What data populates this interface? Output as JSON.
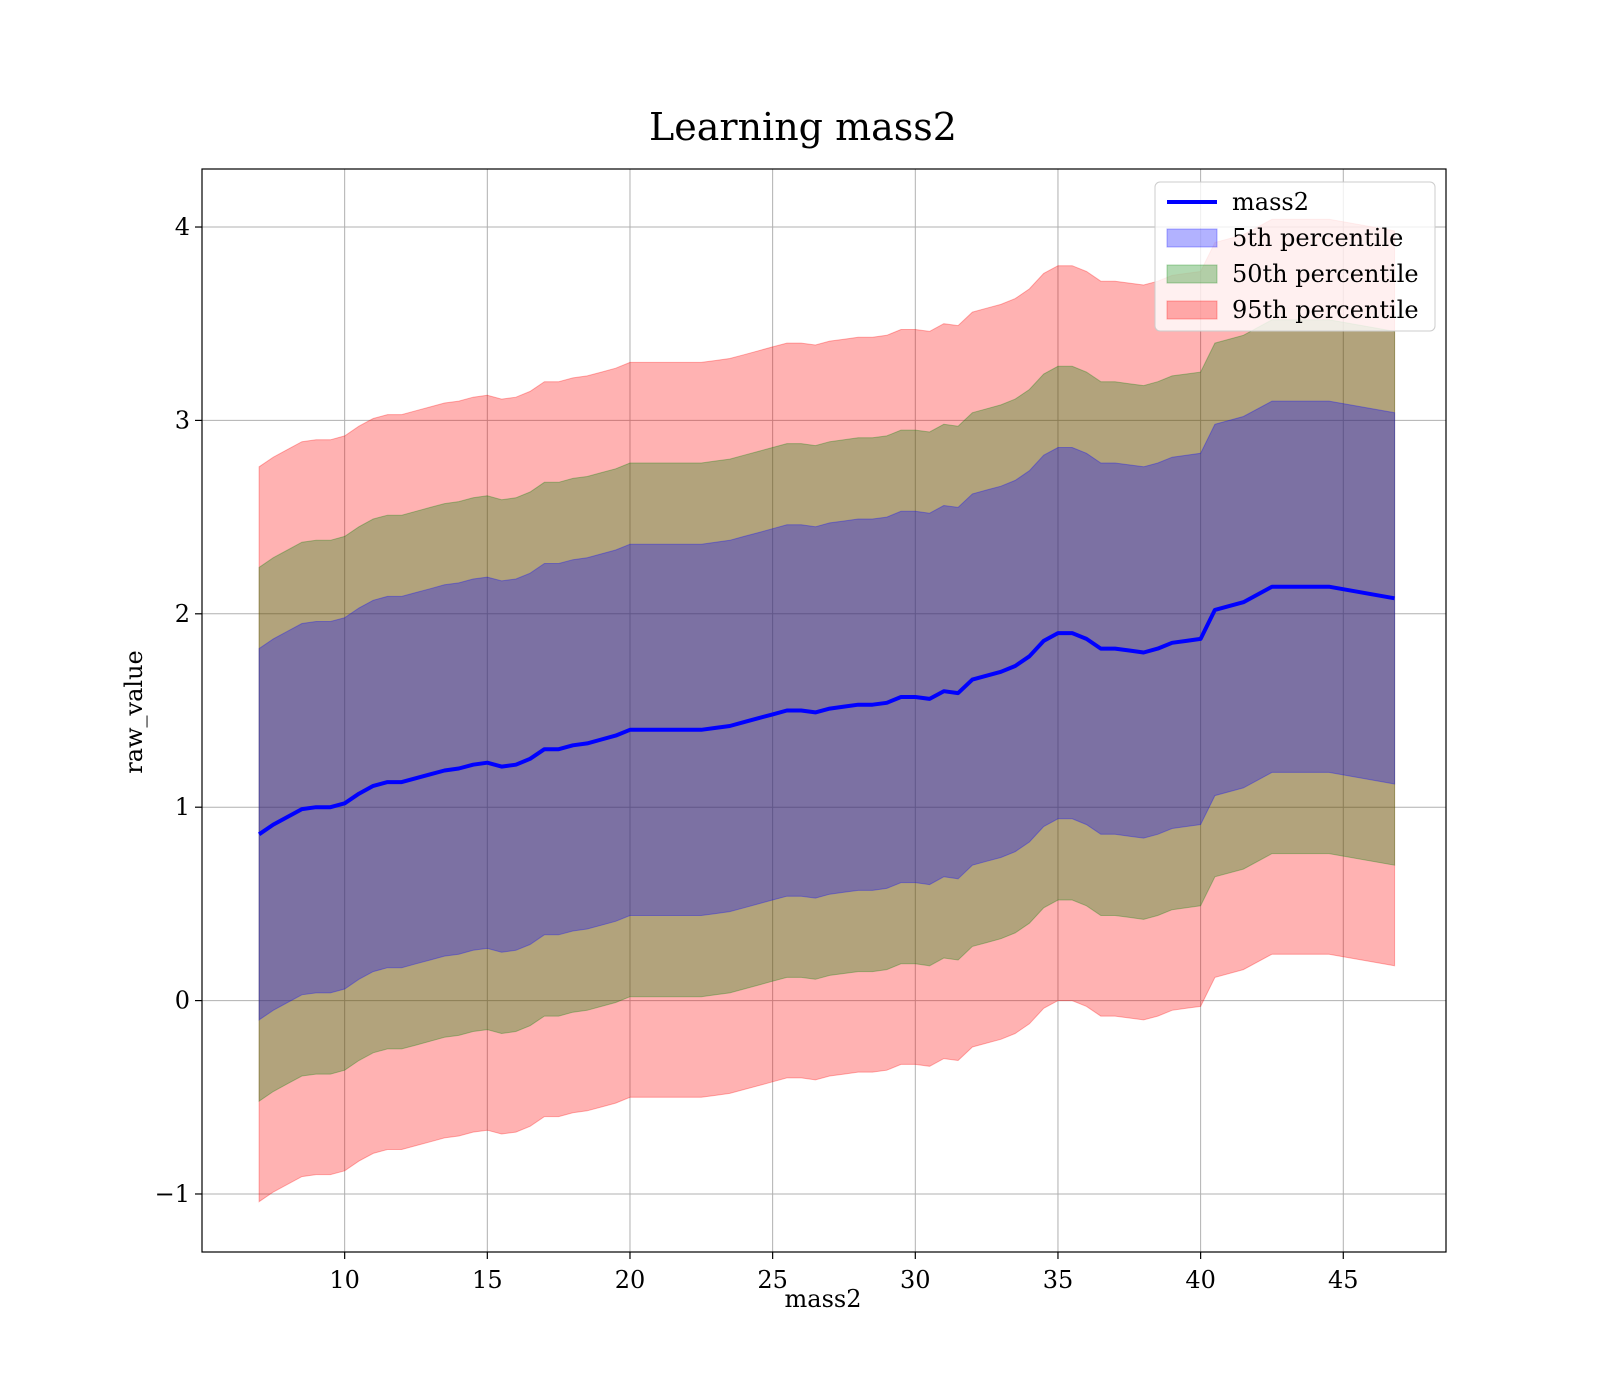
{
  "chart_data": {
    "type": "line",
    "title": "Learning mass2",
    "xlabel": "mass2",
    "ylabel": "raw_value",
    "xlim": [
      5.0,
      48.6
    ],
    "ylim": [
      -1.3,
      4.3
    ],
    "xticks": [
      10,
      15,
      20,
      25,
      30,
      35,
      40,
      45
    ],
    "xtick_labels": [
      "10",
      "15",
      "20",
      "25",
      "30",
      "35",
      "40",
      "45"
    ],
    "yticks": [
      -1,
      0,
      1,
      2,
      3,
      4
    ],
    "ytick_labels": [
      "−1",
      "0",
      "1",
      "2",
      "3",
      "4"
    ],
    "grid": true,
    "legend_position": "upper right",
    "x": [
      7.0,
      7.5,
      8.0,
      8.5,
      9.0,
      9.5,
      10.0,
      10.5,
      11.0,
      11.5,
      12.0,
      12.5,
      13.0,
      13.5,
      14.0,
      14.5,
      15.0,
      15.5,
      16.0,
      16.5,
      17.0,
      17.5,
      18.0,
      18.5,
      19.0,
      19.5,
      20.0,
      20.5,
      21.0,
      21.5,
      22.0,
      22.5,
      23.0,
      23.5,
      24.0,
      24.5,
      25.0,
      25.5,
      26.0,
      26.5,
      27.0,
      27.5,
      28.0,
      28.5,
      29.0,
      29.5,
      30.0,
      30.5,
      31.0,
      31.5,
      32.0,
      32.5,
      33.0,
      33.5,
      34.0,
      34.5,
      35.0,
      35.5,
      36.0,
      36.5,
      37.0,
      37.5,
      38.0,
      38.5,
      39.0,
      39.5,
      40.0,
      40.5,
      41.5,
      42.5,
      44.5,
      46.8
    ],
    "series": [
      {
        "name": "mass2",
        "type": "line",
        "color": "#0000ff",
        "values": [
          0.86,
          0.91,
          0.95,
          0.99,
          1.0,
          1.0,
          1.02,
          1.07,
          1.11,
          1.13,
          1.13,
          1.15,
          1.17,
          1.19,
          1.2,
          1.22,
          1.23,
          1.21,
          1.22,
          1.25,
          1.3,
          1.3,
          1.32,
          1.33,
          1.35,
          1.37,
          1.4,
          1.4,
          1.4,
          1.4,
          1.4,
          1.4,
          1.41,
          1.42,
          1.44,
          1.46,
          1.48,
          1.5,
          1.5,
          1.49,
          1.51,
          1.52,
          1.53,
          1.53,
          1.54,
          1.57,
          1.57,
          1.56,
          1.6,
          1.59,
          1.66,
          1.68,
          1.7,
          1.73,
          1.78,
          1.86,
          1.9,
          1.9,
          1.87,
          1.82,
          1.82,
          1.81,
          1.8,
          1.82,
          1.85,
          1.86,
          1.87,
          2.02,
          2.06,
          2.14,
          2.14,
          2.08
        ]
      },
      {
        "name": "5th percentile",
        "type": "band",
        "color": "#0000ff",
        "offset": 0.96
      },
      {
        "name": "50th percentile",
        "type": "band",
        "color": "#008000",
        "offset": 1.38
      },
      {
        "name": "95th percentile",
        "type": "band",
        "color": "#ff0000",
        "offset": 1.9
      }
    ]
  }
}
